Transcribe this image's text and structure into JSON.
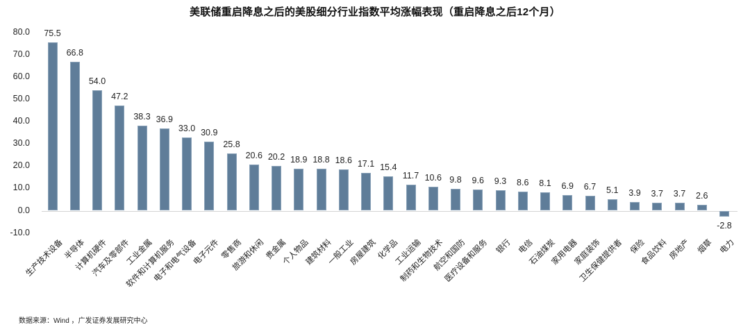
{
  "chart_data": {
    "type": "bar",
    "title": "美联储重启降息之后的美股细分行业指数平均涨幅表现（重启降息之后12个月）",
    "xlabel": "",
    "ylabel": "",
    "ylim": [
      -10,
      80
    ],
    "yticks": [
      "80.0",
      "70.0",
      "60.0",
      "50.0",
      "40.0",
      "30.0",
      "20.0",
      "10.0",
      "0.0",
      "-10.0"
    ],
    "grid": false,
    "legend": null,
    "bar_color": "#5f7d99",
    "categories": [
      "生产技术设备",
      "半导体",
      "计算机硬件",
      "汽车及零部件",
      "工业金属",
      "软件和计算机服务",
      "电子和电气设备",
      "电子元件",
      "零售商",
      "旅游和休闲",
      "贵金属",
      "个人物品",
      "建筑材料",
      "一般工业",
      "房屋建筑",
      "化学品",
      "工业运输",
      "制药和生物技术",
      "航空和国防",
      "医疗设备和服务",
      "银行",
      "电信",
      "石油煤炭",
      "家用电器",
      "家庭装饰",
      "卫生保健提供者",
      "保险",
      "食品饮料",
      "房地产",
      "烟草",
      "电力"
    ],
    "values": [
      75.5,
      66.8,
      54.0,
      47.2,
      38.3,
      36.9,
      33.0,
      30.9,
      25.8,
      20.6,
      20.2,
      18.9,
      18.8,
      18.6,
      17.1,
      15.4,
      11.7,
      10.6,
      9.8,
      9.6,
      9.3,
      8.6,
      8.1,
      6.9,
      6.7,
      5.1,
      3.9,
      3.7,
      3.7,
      2.6,
      -2.8
    ],
    "value_labels": [
      "75.5",
      "66.8",
      "54.0",
      "47.2",
      "38.3",
      "36.9",
      "33.0",
      "30.9",
      "25.8",
      "20.6",
      "20.2",
      "18.9",
      "18.8",
      "18.6",
      "17.1",
      "15.4",
      "11.7",
      "10.6",
      "9.8",
      "9.6",
      "9.3",
      "8.6",
      "8.1",
      "6.9",
      "6.7",
      "5.1",
      "3.9",
      "3.7",
      "3.7",
      "2.6",
      "-2.8"
    ]
  },
  "source": "数据来源：Wind ，广发证券发展研究中心"
}
